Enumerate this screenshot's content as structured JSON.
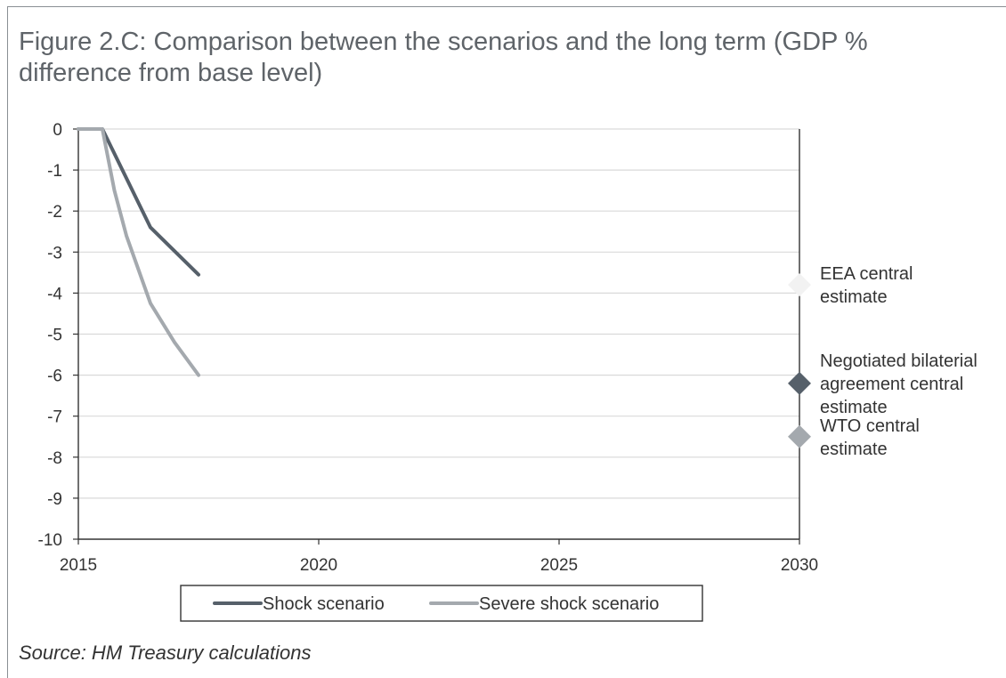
{
  "title": "Figure 2.C: Comparison between the scenarios and the long term (GDP % difference from base level)",
  "source": "Source: HM Treasury calculations",
  "colors": {
    "shock": "#56606a",
    "severe": "#a4a9ae",
    "eea": "#f2f2f2",
    "bilateral": "#56606a",
    "wto": "#a4a9ae",
    "grid": "#d9d9d9",
    "axis": "#333333"
  },
  "chart_data": {
    "type": "line",
    "xlim": [
      2015,
      2030
    ],
    "ylim": [
      -10,
      0
    ],
    "x_ticks": [
      2015,
      2020,
      2025,
      2030
    ],
    "y_ticks": [
      0,
      -1,
      -2,
      -3,
      -4,
      -5,
      -6,
      -7,
      -8,
      -9,
      -10
    ],
    "grid": true,
    "legend_position": "bottom",
    "series": [
      {
        "name": "Shock scenario",
        "color": "#56606a",
        "points": [
          [
            2015.0,
            0
          ],
          [
            2015.5,
            0
          ],
          [
            2016.5,
            -2.4
          ],
          [
            2017.5,
            -3.55
          ]
        ]
      },
      {
        "name": "Severe shock scenario",
        "color": "#a4a9ae",
        "points": [
          [
            2015.0,
            0
          ],
          [
            2015.5,
            0
          ],
          [
            2015.75,
            -1.5
          ],
          [
            2016.0,
            -2.6
          ],
          [
            2016.5,
            -4.25
          ],
          [
            2017.0,
            -5.2
          ],
          [
            2017.5,
            -6.0
          ]
        ]
      }
    ],
    "markers": [
      {
        "name": "EEA central estimate",
        "lines": [
          "EEA central",
          "estimate"
        ],
        "x": 2030,
        "y": -3.8,
        "color": "#f2f2f2"
      },
      {
        "name": "Negotiated bilateral agreement central estimate",
        "lines": [
          "Negotiated bilaterial",
          "agreement central",
          "estimate"
        ],
        "x": 2030,
        "y": -6.2,
        "color": "#56606a"
      },
      {
        "name": "WTO central estimate",
        "lines": [
          "WTO central",
          "estimate"
        ],
        "x": 2030,
        "y": -7.5,
        "color": "#a4a9ae"
      }
    ]
  }
}
